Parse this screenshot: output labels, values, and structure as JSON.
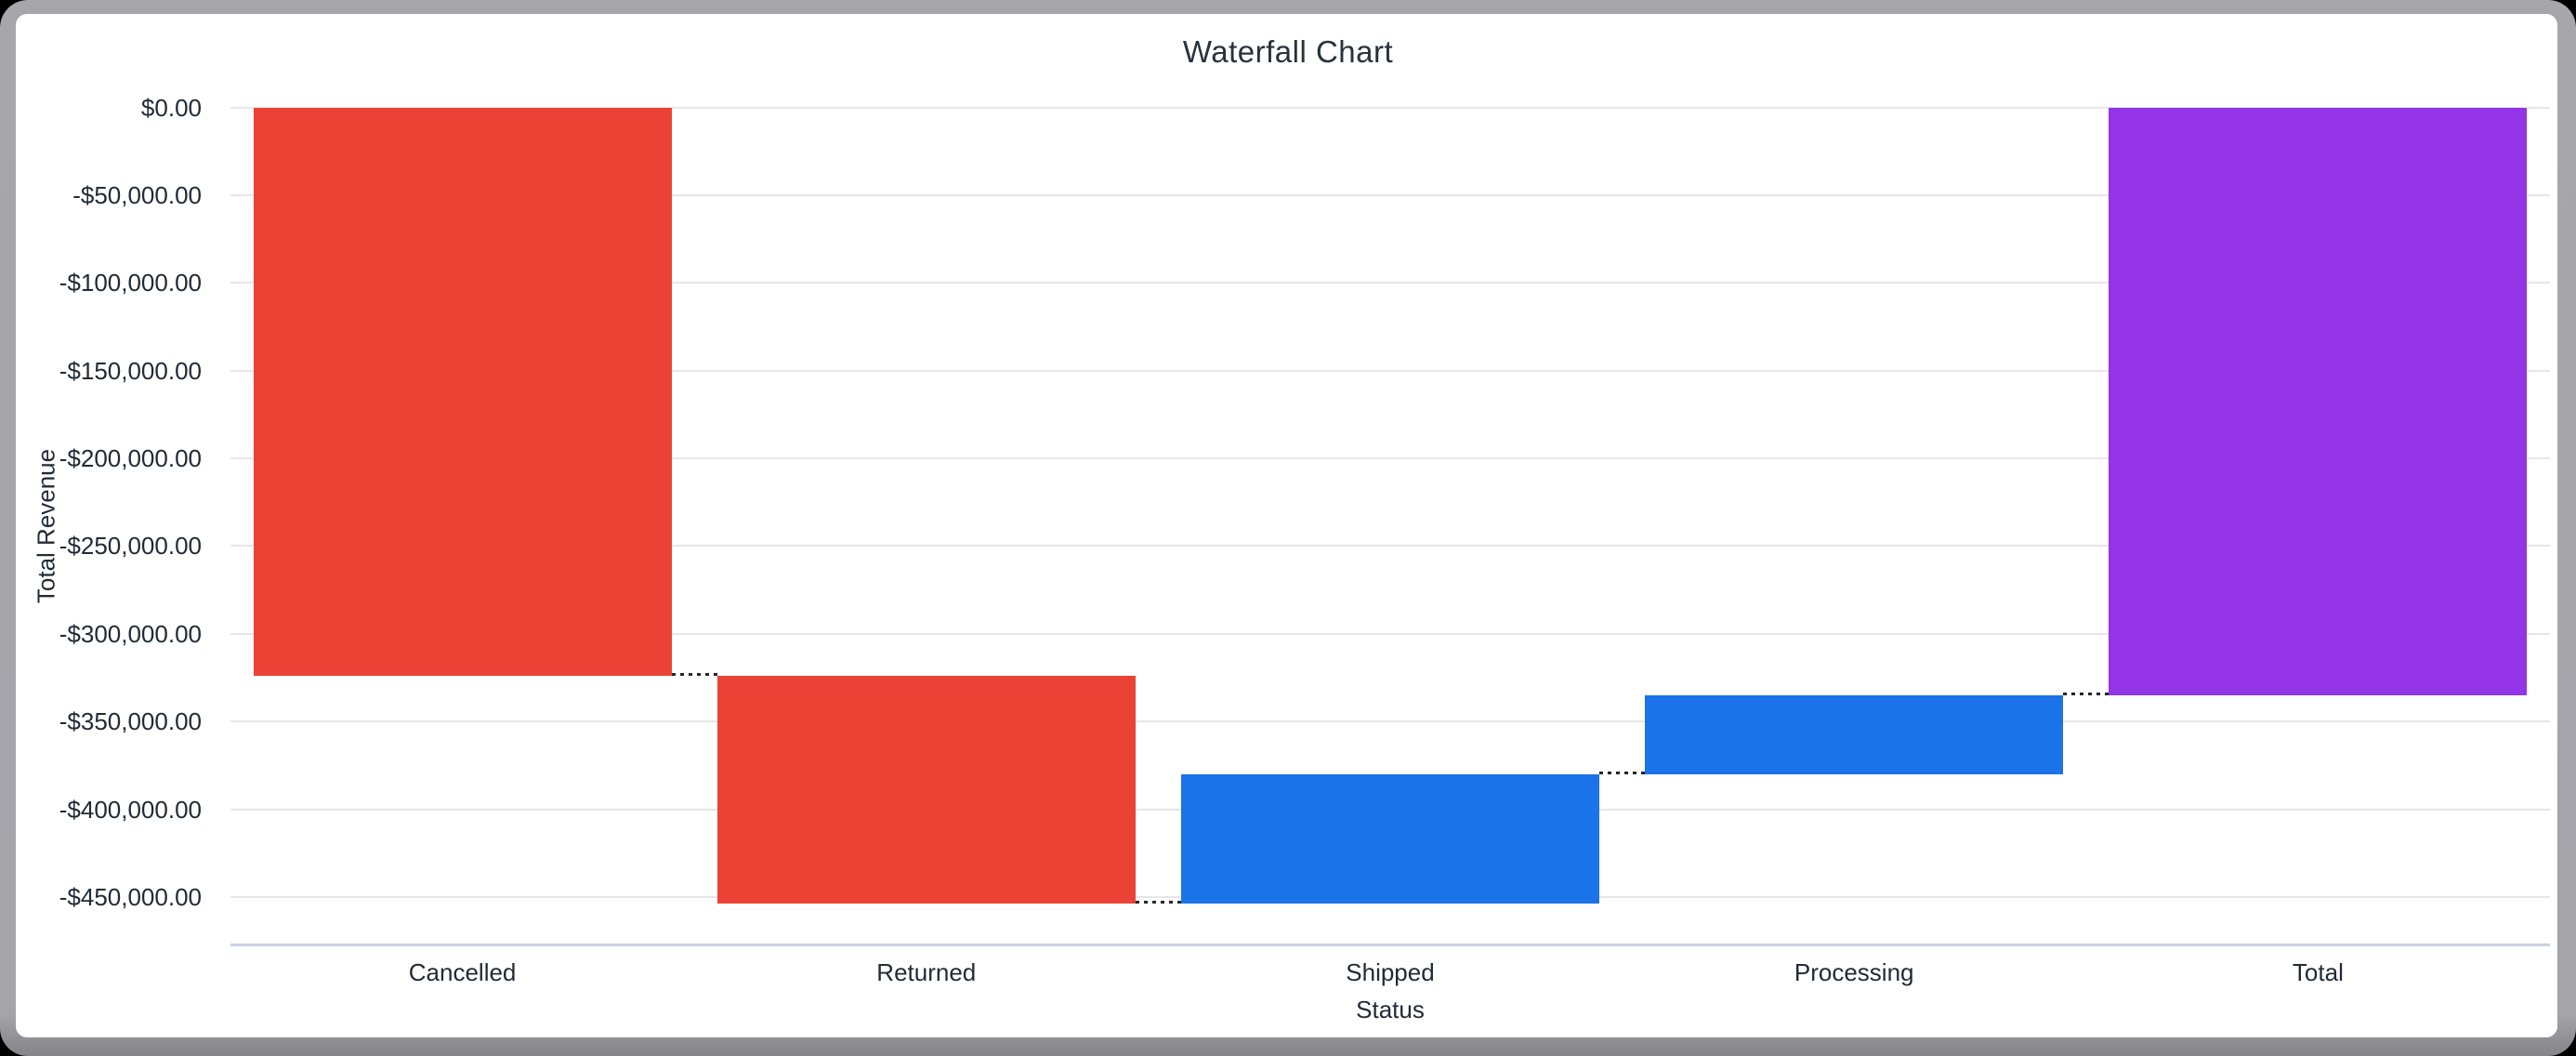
{
  "window": {
    "frame_color": "#a4a4a9",
    "frame_bottom_edge_color": "#8c8c91",
    "canvas_color": "#ffffff",
    "outside_color": "#000000"
  },
  "chart_data": {
    "type": "bar",
    "variant": "waterfall",
    "title": "Waterfall Chart",
    "xlabel": "Status",
    "ylabel": "Total Revenue",
    "categories": [
      "Cancelled",
      "Returned",
      "Shipped",
      "Processing",
      "Total"
    ],
    "bars": [
      {
        "label": "Cancelled",
        "start": 0,
        "end": -324000,
        "delta": -324000,
        "color": "#ea4335"
      },
      {
        "label": "Returned",
        "start": -324000,
        "end": -454000,
        "delta": -130000,
        "color": "#ea4335"
      },
      {
        "label": "Shipped",
        "start": -454000,
        "end": -380000,
        "delta": 74000,
        "color": "#1a73e8"
      },
      {
        "label": "Processing",
        "start": -380000,
        "end": -335000,
        "delta": 45000,
        "color": "#1a73e8"
      },
      {
        "label": "Total",
        "start": 0,
        "end": -335000,
        "delta": -335000,
        "color": "#9334e6"
      }
    ],
    "y_ticks": [
      {
        "value": 0,
        "label": "$0.00"
      },
      {
        "value": -50000,
        "label": "-$50,000.00"
      },
      {
        "value": -100000,
        "label": "-$100,000.00"
      },
      {
        "value": -150000,
        "label": "-$150,000.00"
      },
      {
        "value": -200000,
        "label": "-$200,000.00"
      },
      {
        "value": -250000,
        "label": "-$250,000.00"
      },
      {
        "value": -300000,
        "label": "-$300,000.00"
      },
      {
        "value": -350000,
        "label": "-$350,000.00"
      },
      {
        "value": -400000,
        "label": "-$400,000.00"
      },
      {
        "value": -450000,
        "label": "-$450,000.00"
      }
    ],
    "ylim": [
      -477000,
      0
    ],
    "grid": true,
    "legend_position": "none",
    "style": {
      "gridline_color": "#e7e7e9",
      "baseline_color": "#c9d1e6",
      "connector_color": "#262626",
      "label_color": "#212b36",
      "title_color": "#28323c"
    }
  }
}
